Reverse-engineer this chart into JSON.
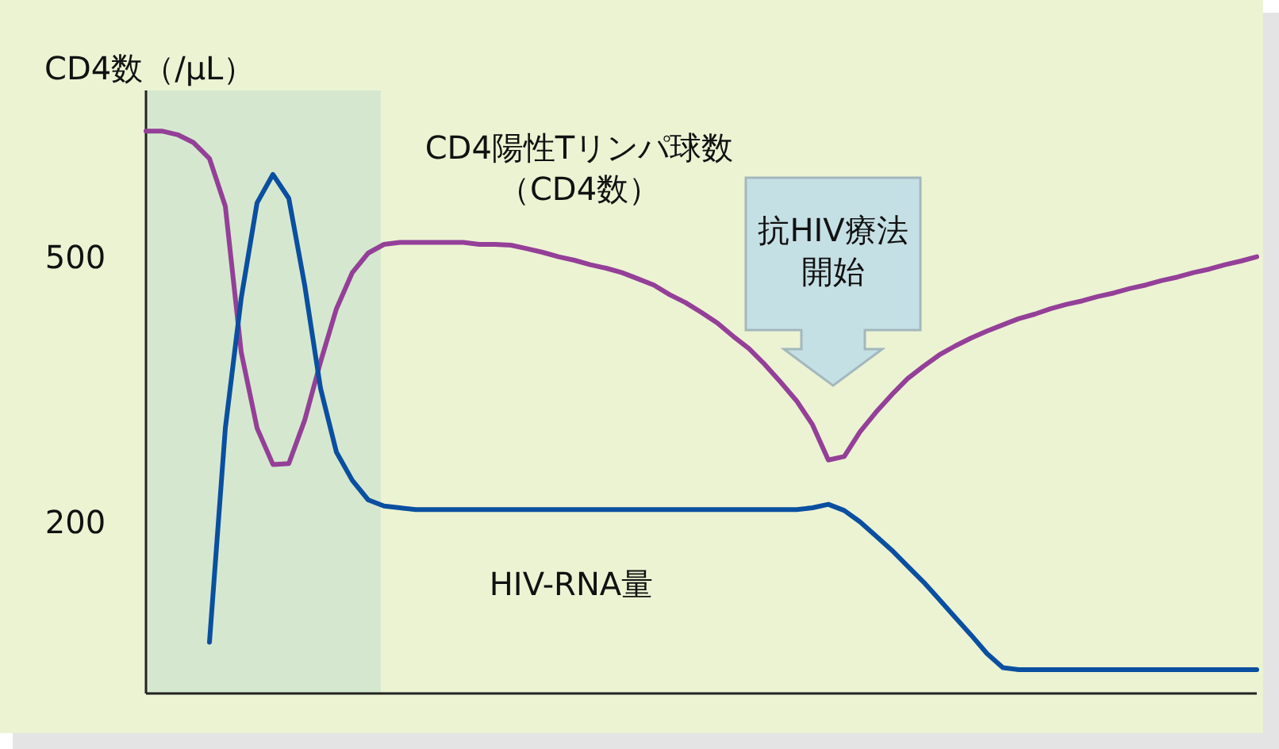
{
  "chart_data": {
    "type": "line",
    "ylabel": "CD4数（/μL）",
    "categories": [
      null,
      null,
      null,
      null,
      null,
      null,
      null,
      null,
      null,
      null,
      null,
      null,
      null,
      null,
      null,
      null,
      null,
      null,
      null,
      null,
      null,
      null,
      null,
      null,
      null,
      null,
      null,
      null,
      null,
      null,
      null,
      null,
      null,
      null,
      null,
      null,
      null,
      null,
      null,
      null,
      null,
      null,
      null,
      null,
      null,
      null,
      null,
      null,
      null,
      null,
      null,
      null,
      null,
      null,
      null,
      null,
      null,
      null,
      null,
      null,
      null,
      null,
      null,
      null,
      null,
      null,
      null,
      null,
      null,
      null,
      null
    ],
    "series": [
      {
        "name": "CD4陽性Tリンパ球数（CD4数）",
        "color": "#943f98",
        "values": [
          642,
          642,
          638,
          629,
          611,
          557,
          392,
          306,
          265,
          266,
          315,
          381,
          441,
          482,
          504,
          514,
          516,
          516,
          516,
          516,
          516,
          514,
          514,
          513,
          509,
          505,
          500,
          496,
          491,
          487,
          482,
          475,
          468,
          457,
          448,
          437,
          425,
          410,
          396,
          378,
          358,
          337,
          310,
          270,
          274,
          302,
          324,
          344,
          362,
          376,
          389,
          399,
          408,
          416,
          423,
          430,
          435,
          441,
          446,
          450,
          455,
          459,
          464,
          468,
          473,
          477,
          482,
          486,
          491,
          495,
          500
        ]
      },
      {
        "name": "HIV-RNA量",
        "color": "#0a4fa0",
        "values": [
          null,
          null,
          null,
          null,
          64,
          306,
          453,
          561,
          593,
          566,
          468,
          351,
          279,
          247,
          225,
          218,
          216,
          214,
          214,
          214,
          214,
          214,
          214,
          214,
          214,
          214,
          214,
          214,
          214,
          214,
          214,
          214,
          214,
          214,
          214,
          214,
          214,
          214,
          214,
          214,
          214,
          214,
          216,
          220,
          213,
          200,
          184,
          168,
          150,
          132,
          112,
          92,
          72,
          51,
          35,
          33,
          33,
          33,
          33,
          33,
          33,
          33,
          33,
          33,
          33,
          33,
          33,
          33,
          33,
          33,
          33
        ]
      }
    ],
    "ylim": [
      6,
      688
    ],
    "yticks": [
      500,
      200
    ],
    "tick_labels": "y",
    "annotations": [
      "抗HIV療法開始"
    ]
  }
}
